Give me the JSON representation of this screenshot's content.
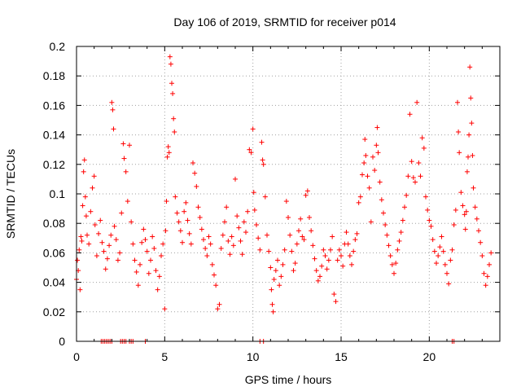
{
  "chart_data": {
    "type": "scatter",
    "title": "Day 106 of 2019, SRMTID for receiver p014",
    "xlabel": "GPS time / hours",
    "ylabel": "SRMTID / TECUs",
    "xlim": [
      0,
      24
    ],
    "ylim": [
      0,
      0.2
    ],
    "x_ticks": [
      0,
      5,
      10,
      15,
      20
    ],
    "x_tick_labels": [
      "0",
      "5",
      "10",
      "15",
      "20"
    ],
    "y_ticks": [
      0,
      0.02,
      0.04,
      0.06,
      0.08,
      0.1,
      0.12,
      0.14,
      0.16,
      0.18,
      0.2
    ],
    "y_tick_labels": [
      "0",
      "0.02",
      "0.04",
      "0.06",
      "0.08",
      "0.1",
      "0.12",
      "0.14",
      "0.16",
      "0.18",
      "0.2"
    ],
    "grid": true,
    "marker": "+",
    "marker_color": "#ff0000",
    "series": [
      {
        "name": "SRMTID",
        "points": [
          [
            0.0,
            0.042
          ],
          [
            0.05,
            0.055
          ],
          [
            0.1,
            0.048
          ],
          [
            0.15,
            0.062
          ],
          [
            0.2,
            0.035
          ],
          [
            0.25,
            0.071
          ],
          [
            0.3,
            0.068
          ],
          [
            0.35,
            0.092
          ],
          [
            0.4,
            0.115
          ],
          [
            0.45,
            0.123
          ],
          [
            0.5,
            0.098
          ],
          [
            0.55,
            0.085
          ],
          [
            0.6,
            0.072
          ],
          [
            0.7,
            0.066
          ],
          [
            0.8,
            0.088
          ],
          [
            0.9,
            0.104
          ],
          [
            1.0,
            0.112
          ],
          [
            1.05,
            0.079
          ],
          [
            1.15,
            0.058
          ],
          [
            1.25,
            0.073
          ],
          [
            1.35,
            0.082
          ],
          [
            1.45,
            0.067
          ],
          [
            1.55,
            0.061
          ],
          [
            1.65,
            0.049
          ],
          [
            1.75,
            0.056
          ],
          [
            1.85,
            0.065
          ],
          [
            1.95,
            0.072
          ],
          [
            2.0,
            0.162
          ],
          [
            2.05,
            0.157
          ],
          [
            2.1,
            0.144
          ],
          [
            2.15,
            0.078
          ],
          [
            2.25,
            0.069
          ],
          [
            2.35,
            0.055
          ],
          [
            2.45,
            0.06
          ],
          [
            2.55,
            0.087
          ],
          [
            2.65,
            0.134
          ],
          [
            2.7,
            0.124
          ],
          [
            2.8,
            0.115
          ],
          [
            2.9,
            0.095
          ],
          [
            3.0,
            0.133
          ],
          [
            3.1,
            0.081
          ],
          [
            3.2,
            0.066
          ],
          [
            3.3,
            0.055
          ],
          [
            3.4,
            0.047
          ],
          [
            3.5,
            0.038
          ],
          [
            3.6,
            0.052
          ],
          [
            3.7,
            0.067
          ],
          [
            3.8,
            0.076
          ],
          [
            3.9,
            0.069
          ],
          [
            4.0,
            0.061
          ],
          [
            4.1,
            0.046
          ],
          [
            4.2,
            0.055
          ],
          [
            4.3,
            0.071
          ],
          [
            4.4,
            0.063
          ],
          [
            4.5,
            0.048
          ],
          [
            4.6,
            0.035
          ],
          [
            4.7,
            0.044
          ],
          [
            4.8,
            0.058
          ],
          [
            4.9,
            0.066
          ],
          [
            5.0,
            0.022
          ],
          [
            5.05,
            0.075
          ],
          [
            5.1,
            0.095
          ],
          [
            5.15,
            0.125
          ],
          [
            5.2,
            0.132
          ],
          [
            5.25,
            0.128
          ],
          [
            5.3,
            0.193
          ],
          [
            5.35,
            0.188
          ],
          [
            5.4,
            0.175
          ],
          [
            5.45,
            0.168
          ],
          [
            5.5,
            0.151
          ],
          [
            5.55,
            0.142
          ],
          [
            5.6,
            0.098
          ],
          [
            5.7,
            0.087
          ],
          [
            5.8,
            0.081
          ],
          [
            5.9,
            0.075
          ],
          [
            6.0,
            0.067
          ],
          [
            6.1,
            0.088
          ],
          [
            6.2,
            0.094
          ],
          [
            6.3,
            0.082
          ],
          [
            6.4,
            0.073
          ],
          [
            6.5,
            0.066
          ],
          [
            6.6,
            0.121
          ],
          [
            6.7,
            0.114
          ],
          [
            6.8,
            0.105
          ],
          [
            6.9,
            0.091
          ],
          [
            7.0,
            0.084
          ],
          [
            7.1,
            0.076
          ],
          [
            7.2,
            0.069
          ],
          [
            7.3,
            0.063
          ],
          [
            7.4,
            0.058
          ],
          [
            7.5,
            0.071
          ],
          [
            7.6,
            0.066
          ],
          [
            7.7,
            0.052
          ],
          [
            7.8,
            0.045
          ],
          [
            7.9,
            0.038
          ],
          [
            8.0,
            0.022
          ],
          [
            8.1,
            0.025
          ],
          [
            8.2,
            0.063
          ],
          [
            8.3,
            0.072
          ],
          [
            8.4,
            0.081
          ],
          [
            8.5,
            0.091
          ],
          [
            8.6,
            0.068
          ],
          [
            8.7,
            0.059
          ],
          [
            8.8,
            0.071
          ],
          [
            8.9,
            0.065
          ],
          [
            9.0,
            0.11
          ],
          [
            9.1,
            0.085
          ],
          [
            9.2,
            0.077
          ],
          [
            9.3,
            0.068
          ],
          [
            9.4,
            0.059
          ],
          [
            9.5,
            0.081
          ],
          [
            9.6,
            0.074
          ],
          [
            9.7,
            0.088
          ],
          [
            9.8,
            0.13
          ],
          [
            9.9,
            0.128
          ],
          [
            10.0,
            0.144
          ],
          [
            10.05,
            0.101
          ],
          [
            10.1,
            0.089
          ],
          [
            10.2,
            0.079
          ],
          [
            10.3,
            0.07
          ],
          [
            10.4,
            0.062
          ],
          [
            10.5,
            0.135
          ],
          [
            10.55,
            0.123
          ],
          [
            10.6,
            0.12
          ],
          [
            10.7,
            0.098
          ],
          [
            10.8,
            0.072
          ],
          [
            10.9,
            0.061
          ],
          [
            11.0,
            0.05
          ],
          [
            11.05,
            0.035
          ],
          [
            11.1,
            0.025
          ],
          [
            11.15,
            0.02
          ],
          [
            11.2,
            0.042
          ],
          [
            11.3,
            0.048
          ],
          [
            11.4,
            0.055
          ],
          [
            11.5,
            0.038
          ],
          [
            11.6,
            0.044
          ],
          [
            11.7,
            0.052
          ],
          [
            11.8,
            0.062
          ],
          [
            11.9,
            0.095
          ],
          [
            12.0,
            0.084
          ],
          [
            12.1,
            0.072
          ],
          [
            12.2,
            0.061
          ],
          [
            12.3,
            0.048
          ],
          [
            12.4,
            0.053
          ],
          [
            12.5,
            0.066
          ],
          [
            12.6,
            0.075
          ],
          [
            12.7,
            0.083
          ],
          [
            12.8,
            0.071
          ],
          [
            12.9,
            0.069
          ],
          [
            13.0,
            0.099
          ],
          [
            13.1,
            0.102
          ],
          [
            13.2,
            0.084
          ],
          [
            13.3,
            0.075
          ],
          [
            13.4,
            0.065
          ],
          [
            13.5,
            0.056
          ],
          [
            13.6,
            0.048
          ],
          [
            13.7,
            0.041
          ],
          [
            13.8,
            0.044
          ],
          [
            13.9,
            0.051
          ],
          [
            14.0,
            0.062
          ],
          [
            14.1,
            0.058
          ],
          [
            14.2,
            0.049
          ],
          [
            14.3,
            0.055
          ],
          [
            14.4,
            0.062
          ],
          [
            14.5,
            0.071
          ],
          [
            14.6,
            0.032
          ],
          [
            14.7,
            0.027
          ],
          [
            14.8,
            0.055
          ],
          [
            14.9,
            0.062
          ],
          [
            15.0,
            0.058
          ],
          [
            15.1,
            0.051
          ],
          [
            15.2,
            0.066
          ],
          [
            15.3,
            0.074
          ],
          [
            15.4,
            0.066
          ],
          [
            15.5,
            0.058
          ],
          [
            15.6,
            0.052
          ],
          [
            15.7,
            0.061
          ],
          [
            15.8,
            0.069
          ],
          [
            15.9,
            0.073
          ],
          [
            16.0,
            0.094
          ],
          [
            16.1,
            0.098
          ],
          [
            16.2,
            0.113
          ],
          [
            16.3,
            0.121
          ],
          [
            16.35,
            0.137
          ],
          [
            16.4,
            0.126
          ],
          [
            16.5,
            0.112
          ],
          [
            16.6,
            0.104
          ],
          [
            16.7,
            0.081
          ],
          [
            16.8,
            0.125
          ],
          [
            16.9,
            0.116
          ],
          [
            17.0,
            0.133
          ],
          [
            17.05,
            0.145
          ],
          [
            17.1,
            0.128
          ],
          [
            17.2,
            0.108
          ],
          [
            17.3,
            0.096
          ],
          [
            17.4,
            0.087
          ],
          [
            17.5,
            0.079
          ],
          [
            17.6,
            0.072
          ],
          [
            17.7,
            0.065
          ],
          [
            17.8,
            0.058
          ],
          [
            17.9,
            0.052
          ],
          [
            18.0,
            0.046
          ],
          [
            18.1,
            0.053
          ],
          [
            18.2,
            0.062
          ],
          [
            18.3,
            0.068
          ],
          [
            18.4,
            0.074
          ],
          [
            18.5,
            0.082
          ],
          [
            18.6,
            0.091
          ],
          [
            18.7,
            0.099
          ],
          [
            18.8,
            0.112
          ],
          [
            18.9,
            0.154
          ],
          [
            19.0,
            0.122
          ],
          [
            19.1,
            0.111
          ],
          [
            19.2,
            0.108
          ],
          [
            19.3,
            0.162
          ],
          [
            19.4,
            0.121
          ],
          [
            19.5,
            0.112
          ],
          [
            19.6,
            0.138
          ],
          [
            19.7,
            0.131
          ],
          [
            19.8,
            0.098
          ],
          [
            19.9,
            0.089
          ],
          [
            20.0,
            0.082
          ],
          [
            20.1,
            0.078
          ],
          [
            20.2,
            0.069
          ],
          [
            20.3,
            0.061
          ],
          [
            20.4,
            0.053
          ],
          [
            20.5,
            0.058
          ],
          [
            20.6,
            0.064
          ],
          [
            20.7,
            0.071
          ],
          [
            20.8,
            0.061
          ],
          [
            20.9,
            0.052
          ],
          [
            21.0,
            0.046
          ],
          [
            21.1,
            0.039
          ],
          [
            21.2,
            0.055
          ],
          [
            21.3,
            0.062
          ],
          [
            21.4,
            0.079
          ],
          [
            21.5,
            0.089
          ],
          [
            21.6,
            0.162
          ],
          [
            21.65,
            0.142
          ],
          [
            21.7,
            0.128
          ],
          [
            21.8,
            0.101
          ],
          [
            21.9,
            0.092
          ],
          [
            22.0,
            0.086
          ],
          [
            22.05,
            0.076
          ],
          [
            22.1,
            0.088
          ],
          [
            22.15,
            0.115
          ],
          [
            22.2,
            0.125
          ],
          [
            22.25,
            0.14
          ],
          [
            22.3,
            0.186
          ],
          [
            22.35,
            0.165
          ],
          [
            22.4,
            0.148
          ],
          [
            22.45,
            0.126
          ],
          [
            22.5,
            0.104
          ],
          [
            22.6,
            0.091
          ],
          [
            22.7,
            0.083
          ],
          [
            22.8,
            0.075
          ],
          [
            22.9,
            0.067
          ],
          [
            23.0,
            0.058
          ],
          [
            23.1,
            0.046
          ],
          [
            23.2,
            0.038
          ],
          [
            23.3,
            0.044
          ],
          [
            23.4,
            0.052
          ],
          [
            23.5,
            0.06
          ],
          [
            1.4,
            0.0
          ],
          [
            1.5,
            0.0
          ],
          [
            1.6,
            0.0
          ],
          [
            1.7,
            0.0
          ],
          [
            1.8,
            0.0
          ],
          [
            1.9,
            0.0
          ],
          [
            2.0,
            0.0
          ],
          [
            2.5,
            0.0
          ],
          [
            2.6,
            0.0
          ],
          [
            2.7,
            0.0
          ],
          [
            2.8,
            0.0
          ],
          [
            3.0,
            0.0
          ],
          [
            3.1,
            0.0
          ],
          [
            3.2,
            0.0
          ],
          [
            3.9,
            0.0
          ],
          [
            10.4,
            0.0
          ],
          [
            10.6,
            0.0
          ],
          [
            21.3,
            0.0
          ],
          [
            21.4,
            0.0
          ]
        ]
      }
    ]
  }
}
